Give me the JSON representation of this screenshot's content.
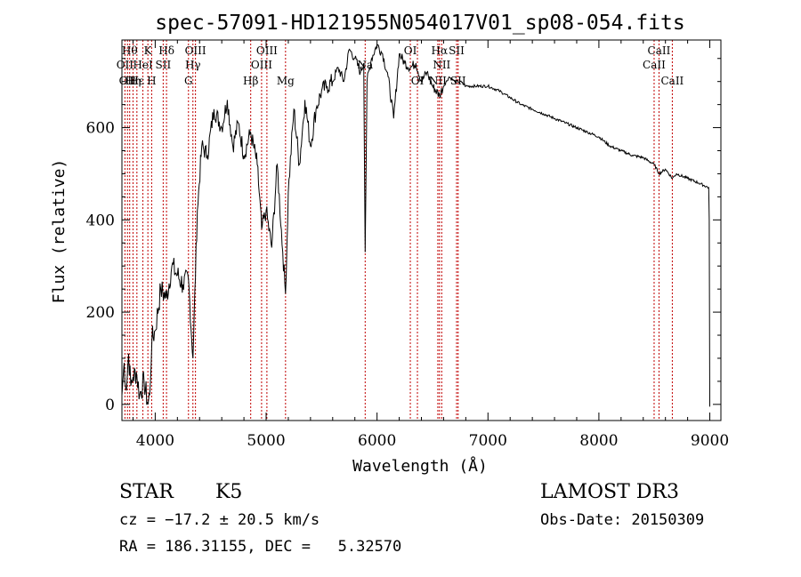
{
  "chart_data": {
    "type": "line",
    "title": "spec-57091-HD121955N054017V01_sp08-054.fits",
    "xlabel": "Wavelength (Å)",
    "ylabel": "Flux (relative)",
    "xlim": [
      3700,
      9100
    ],
    "ylim": [
      -35,
      790
    ],
    "xticks": [
      "4000",
      "5000",
      "6000",
      "7000",
      "8000",
      "9000"
    ],
    "yticks": [
      "0",
      "200",
      "400",
      "600"
    ],
    "xtick_values": [
      4000,
      5000,
      6000,
      7000,
      8000,
      9000
    ],
    "ytick_values": [
      0,
      200,
      400,
      600
    ],
    "grid": false,
    "series": [
      {
        "line_color": "#000000",
        "x": [
          3700,
          3720,
          3740,
          3760,
          3780,
          3800,
          3830,
          3860,
          3900,
          3935,
          3950,
          3970,
          4000,
          4050,
          4100,
          4150,
          4200,
          4250,
          4300,
          4340,
          4380,
          4420,
          4470,
          4530,
          4600,
          4650,
          4700,
          4750,
          4800,
          4860,
          4920,
          4960,
          5000,
          5050,
          5100,
          5150,
          5175,
          5200,
          5250,
          5300,
          5350,
          5400,
          5450,
          5500,
          5550,
          5600,
          5650,
          5700,
          5750,
          5800,
          5850,
          5880,
          5893,
          5910,
          5950,
          6000,
          6050,
          6100,
          6150,
          6200,
          6250,
          6300,
          6350,
          6400,
          6450,
          6500,
          6563,
          6600,
          6650,
          6700,
          6750,
          6800,
          6900,
          7000,
          7100,
          7200,
          7300,
          7400,
          7500,
          7600,
          7700,
          7800,
          7900,
          8000,
          8100,
          8200,
          8300,
          8400,
          8500,
          8542,
          8600,
          8662,
          8700,
          8800,
          8900,
          8990,
          8995,
          9000
        ],
        "values": [
          20,
          90,
          30,
          110,
          40,
          60,
          70,
          20,
          50,
          0,
          20,
          140,
          160,
          250,
          230,
          300,
          280,
          260,
          270,
          100,
          420,
          560,
          540,
          640,
          600,
          660,
          560,
          610,
          540,
          590,
          520,
          380,
          420,
          340,
          520,
          330,
          240,
          460,
          640,
          520,
          660,
          560,
          640,
          680,
          690,
          700,
          730,
          700,
          770,
          750,
          720,
          740,
          330,
          700,
          750,
          780,
          760,
          710,
          620,
          760,
          740,
          730,
          740,
          700,
          720,
          690,
          670,
          690,
          710,
          700,
          700,
          690,
          690,
          690,
          680,
          665,
          650,
          640,
          630,
          620,
          610,
          600,
          590,
          580,
          560,
          550,
          540,
          535,
          520,
          500,
          510,
          490,
          500,
          490,
          480,
          470,
          400,
          -5
        ]
      }
    ],
    "line_markers": [
      {
        "wl": 3727,
        "label": "OII",
        "row": 2
      },
      {
        "wl": 3750,
        "label": "OII",
        "row": 3
      },
      {
        "wl": 3770,
        "label": "Hθ",
        "row": 1
      },
      {
        "wl": 3800,
        "label": "Hη",
        "row": 3
      },
      {
        "wl": 3835,
        "label": "Hε",
        "row": 3
      },
      {
        "wl": 3889,
        "label": "HeI",
        "row": 2
      },
      {
        "wl": 3934,
        "label": "K",
        "row": 1
      },
      {
        "wl": 3968,
        "label": "H",
        "row": 3
      },
      {
        "wl": 4072,
        "label": "SII",
        "row": 2
      },
      {
        "wl": 4102,
        "label": "Hδ",
        "row": 1
      },
      {
        "wl": 4300,
        "label": "G",
        "row": 3
      },
      {
        "wl": 4340,
        "label": "Hγ",
        "row": 2
      },
      {
        "wl": 4363,
        "label": "OIII",
        "row": 1
      },
      {
        "wl": 4861,
        "label": "Hβ",
        "row": 3
      },
      {
        "wl": 4959,
        "label": "OIII",
        "row": 2
      },
      {
        "wl": 5007,
        "label": "OIII",
        "row": 1
      },
      {
        "wl": 5175,
        "label": "Mg",
        "row": 3
      },
      {
        "wl": 5893,
        "label": "Na",
        "row": 2
      },
      {
        "wl": 6300,
        "label": "OI",
        "row": 1
      },
      {
        "wl": 6364,
        "label": "OI",
        "row": 3
      },
      {
        "wl": 6548,
        "label": "NII",
        "row": 3
      },
      {
        "wl": 6563,
        "label": "Hα",
        "row": 1
      },
      {
        "wl": 6583,
        "label": "NII",
        "row": 2
      },
      {
        "wl": 6717,
        "label": "SII",
        "row": 1
      },
      {
        "wl": 6731,
        "label": "SII",
        "row": 3
      },
      {
        "wl": 8498,
        "label": "CaII",
        "row": 2
      },
      {
        "wl": 8542,
        "label": "CaII",
        "row": 1
      },
      {
        "wl": 8662,
        "label": "CaII",
        "row": 3
      }
    ],
    "marker_color": "#c00000"
  },
  "info": {
    "object_type": "STAR",
    "subclass": "K5",
    "survey": "LAMOST DR3",
    "cz": "cz = −17.2 ± 20.5 km/s",
    "obs_date": "Obs-Date: 20150309",
    "coords": "RA = 186.31155, DEC =   5.32570"
  }
}
